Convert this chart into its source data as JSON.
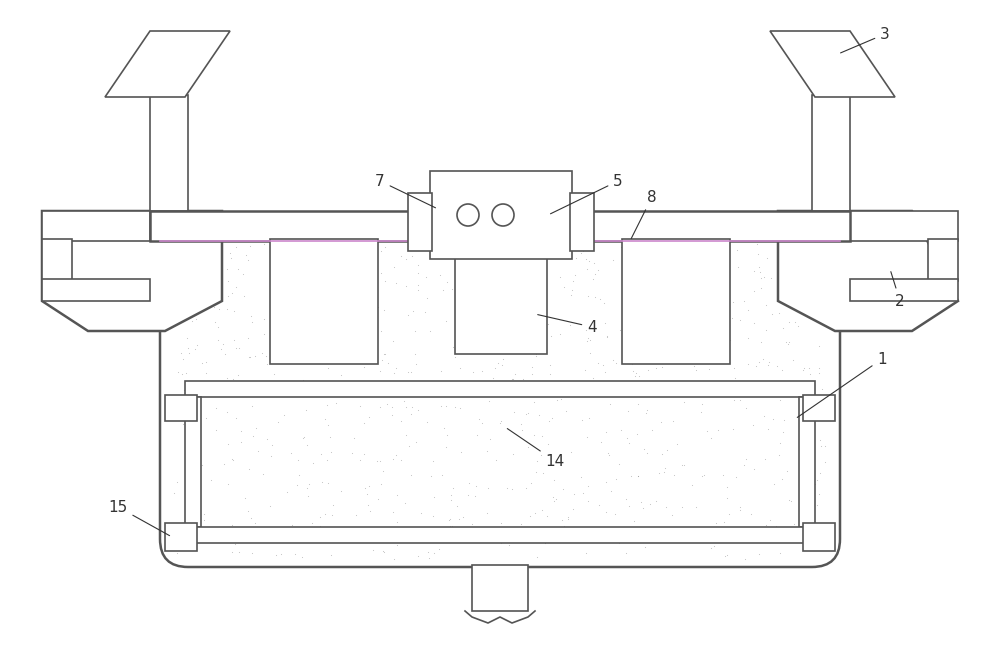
{
  "bg_color": "#ffffff",
  "line_color": "#555555",
  "pink_line": "#cc88cc",
  "label_color": "#333333",
  "lw": 1.2,
  "lw2": 1.8
}
